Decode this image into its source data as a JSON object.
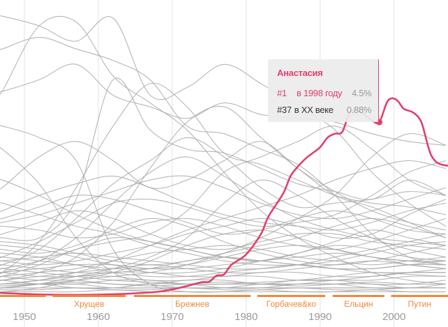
{
  "chart_data": {
    "type": "line",
    "title": "",
    "xlabel": "",
    "ylabel": "",
    "xlim": [
      1946.7,
      2007.3
    ],
    "ylim": [
      0,
      7.67
    ],
    "x_ticks": [
      1950,
      1960,
      1970,
      1980,
      1990,
      2000
    ],
    "grid": "vertical",
    "eras": [
      {
        "label": "",
        "start": 1946.7,
        "end": 1952.9
      },
      {
        "label": "Хрущев",
        "start": 1953.8,
        "end": 1963.7
      },
      {
        "label": "Брежнев",
        "start": 1964.8,
        "end": 1980.6
      },
      {
        "label": "Горбачев&ко",
        "start": 1981.5,
        "end": 1990.7
      },
      {
        "label": "Ельцин",
        "start": 1991.7,
        "end": 1998.7
      },
      {
        "label": "Путин",
        "start": 1999.6,
        "end": 2007.3
      }
    ],
    "highlight": {
      "name": "Анастасия",
      "points": [
        [
          1946.7,
          0.07
        ],
        [
          1952,
          0.03
        ],
        [
          1958,
          0.02
        ],
        [
          1964,
          0.05
        ],
        [
          1968,
          0.1
        ],
        [
          1970,
          0.16
        ],
        [
          1972,
          0.25
        ],
        [
          1974,
          0.35
        ],
        [
          1975,
          0.36
        ],
        [
          1976,
          0.52
        ],
        [
          1977,
          0.55
        ],
        [
          1978,
          0.8
        ],
        [
          1980,
          1.07
        ],
        [
          1982,
          1.6
        ],
        [
          1983,
          2.05
        ],
        [
          1985,
          2.65
        ],
        [
          1986,
          3.1
        ],
        [
          1987,
          3.35
        ],
        [
          1988,
          3.55
        ],
        [
          1989,
          3.7
        ],
        [
          1990,
          3.85
        ],
        [
          1991,
          4.1
        ],
        [
          1992,
          4.2
        ],
        [
          1993,
          4.25
        ],
        [
          1994,
          4.75
        ],
        [
          1995,
          4.8
        ],
        [
          1996,
          4.7
        ],
        [
          1997,
          4.55
        ],
        [
          1998,
          4.5
        ],
        [
          1999,
          5.0
        ],
        [
          1999.7,
          5.12
        ],
        [
          2000.5,
          5.05
        ],
        [
          2001.3,
          4.85
        ],
        [
          2002.4,
          4.77
        ],
        [
          2003.2,
          4.65
        ],
        [
          2003.8,
          4.45
        ],
        [
          2004.5,
          3.95
        ],
        [
          2005,
          3.65
        ],
        [
          2005.7,
          3.47
        ],
        [
          2006.4,
          3.4
        ],
        [
          2007.3,
          3.37
        ]
      ],
      "marker_year": 1998,
      "marker_value": 4.5
    },
    "background_years": [
      1947,
      1952,
      1957,
      1962,
      1967,
      1972,
      1977,
      1982,
      1987,
      1992,
      1997,
      2002,
      2007
    ],
    "background_series": [
      [
        5.3,
        7.0,
        7.1,
        5.7,
        5.0,
        4.3,
        3.2,
        2.2,
        1.5,
        1.0,
        0.6,
        0.4,
        0.3
      ],
      [
        7.25,
        7.0,
        6.6,
        7.2,
        5.2,
        5.4,
        6.0,
        5.5,
        4.9,
        4.3,
        3.2,
        2.4,
        1.8
      ],
      [
        6.4,
        6.7,
        6.4,
        6.1,
        5.6,
        4.4,
        4.2,
        3.8,
        3.4,
        2.6,
        1.6,
        1.0,
        0.8
      ],
      [
        5.3,
        5.6,
        6.0,
        5.2,
        4.9,
        4.6,
        5.0,
        4.7,
        4.6,
        4.5,
        4.2,
        4.0,
        3.9
      ],
      [
        4.4,
        4.1,
        3.5,
        1.2,
        0.3,
        0.1,
        0.1,
        0.1,
        0.1,
        0.1,
        0.1,
        0.1,
        0.1
      ],
      [
        0.6,
        1.4,
        2.8,
        4.4,
        5.5,
        4.9,
        3.7,
        3.4,
        3.0,
        2.6,
        2.4,
        2.3,
        2.1
      ],
      [
        3.8,
        2.9,
        1.5,
        0.6,
        0.3,
        0.2,
        0.2,
        0.2,
        0.2,
        0.2,
        0.2,
        0.2,
        0.2
      ],
      [
        1.5,
        1.5,
        2.5,
        5.6,
        4.3,
        3.8,
        3.7,
        3.3,
        2.9,
        2.7,
        2.5,
        3.0,
        2.6
      ],
      [
        2.8,
        3.6,
        4.0,
        3.5,
        2.8,
        3.0,
        3.5,
        4.0,
        3.3,
        2.6,
        2.3,
        1.9,
        1.5
      ],
      [
        0.8,
        1.2,
        2.0,
        2.9,
        3.5,
        4.1,
        3.6,
        2.8,
        2.3,
        2.4,
        2.5,
        2.7,
        2.6
      ],
      [
        0.4,
        0.6,
        1.0,
        1.9,
        3.3,
        4.5,
        4.9,
        4.1,
        3.3,
        2.7,
        2.2,
        1.9,
        1.7
      ],
      [
        0.5,
        0.8,
        1.2,
        1.4,
        1.6,
        2.2,
        3.2,
        3.6,
        4.0,
        4.4,
        3.8,
        3.0,
        2.6
      ],
      [
        3.0,
        2.6,
        2.1,
        1.7,
        1.4,
        1.2,
        1.0,
        0.9,
        0.8,
        0.7,
        0.7,
        0.8,
        0.8
      ],
      [
        2.4,
        2.1,
        1.8,
        1.6,
        1.3,
        1.1,
        0.9,
        0.8,
        0.8,
        0.9,
        1.1,
        1.3,
        1.4
      ],
      [
        1.0,
        1.4,
        1.9,
        2.4,
        2.5,
        2.3,
        2.0,
        1.8,
        1.9,
        2.1,
        2.6,
        3.2,
        3.5
      ],
      [
        0.3,
        0.4,
        0.6,
        0.9,
        1.3,
        1.7,
        2.0,
        2.3,
        2.6,
        3.0,
        3.3,
        3.5,
        3.3
      ],
      [
        2.0,
        2.3,
        2.6,
        2.5,
        2.2,
        1.9,
        1.6,
        1.7,
        2.0,
        2.2,
        2.0,
        1.7,
        1.6
      ],
      [
        1.8,
        1.7,
        1.5,
        1.6,
        1.9,
        2.0,
        1.8,
        1.5,
        1.3,
        1.2,
        1.4,
        1.7,
        2.0
      ],
      [
        1.2,
        1.1,
        1.3,
        1.7,
        2.0,
        1.8,
        1.4,
        1.1,
        0.9,
        0.8,
        0.9,
        1.1,
        1.3
      ],
      [
        0.2,
        0.3,
        0.5,
        0.7,
        1.0,
        1.5,
        2.4,
        3.0,
        2.6,
        2.0,
        1.5,
        1.2,
        1.0
      ],
      [
        1.6,
        1.9,
        2.2,
        2.0,
        1.6,
        1.3,
        1.2,
        1.4,
        1.6,
        1.6,
        1.4,
        1.3,
        1.2
      ],
      [
        0.9,
        0.8,
        0.9,
        1.1,
        1.3,
        1.6,
        1.8,
        2.0,
        1.8,
        1.5,
        1.6,
        2.1,
        2.5
      ],
      [
        1.4,
        1.3,
        1.1,
        0.9,
        0.8,
        0.9,
        1.1,
        1.3,
        1.5,
        1.8,
        2.0,
        1.8,
        1.5
      ],
      [
        0.7,
        0.9,
        1.2,
        1.5,
        1.4,
        1.2,
        1.0,
        0.9,
        1.1,
        1.4,
        1.7,
        1.5,
        1.3
      ],
      [
        1.1,
        1.0,
        0.8,
        0.7,
        0.7,
        0.8,
        1.0,
        1.2,
        1.3,
        1.2,
        1.0,
        0.9,
        0.9
      ],
      [
        0.5,
        0.6,
        0.7,
        0.9,
        1.1,
        1.2,
        1.3,
        1.2,
        1.0,
        0.9,
        0.8,
        0.9,
        1.0
      ],
      [
        0.9,
        1.0,
        1.1,
        1.0,
        0.9,
        0.8,
        0.7,
        0.7,
        0.8,
        1.0,
        1.2,
        1.4,
        1.6
      ],
      [
        0.6,
        0.7,
        0.8,
        0.8,
        0.7,
        0.7,
        0.8,
        0.9,
        1.0,
        1.1,
        1.0,
        0.8,
        0.7
      ],
      [
        0.8,
        0.7,
        0.6,
        0.6,
        0.7,
        0.9,
        1.0,
        0.9,
        0.8,
        0.7,
        0.7,
        0.8,
        0.9
      ],
      [
        0.4,
        0.5,
        0.6,
        0.7,
        0.8,
        0.7,
        0.6,
        0.6,
        0.7,
        0.8,
        0.9,
        0.8,
        0.7
      ],
      [
        0.6,
        0.5,
        0.5,
        0.6,
        0.6,
        0.5,
        0.5,
        0.6,
        0.6,
        0.5,
        0.5,
        0.6,
        0.7
      ],
      [
        0.3,
        0.4,
        0.5,
        0.5,
        0.4,
        0.4,
        0.5,
        0.5,
        0.4,
        0.4,
        0.5,
        0.6,
        0.6
      ],
      [
        0.5,
        0.4,
        0.4,
        0.3,
        0.3,
        0.4,
        0.4,
        0.3,
        0.3,
        0.4,
        0.4,
        0.5,
        0.5
      ],
      [
        0.2,
        0.3,
        0.3,
        0.4,
        0.4,
        0.3,
        0.3,
        0.3,
        0.4,
        0.4,
        0.3,
        0.3,
        0.4
      ],
      [
        0.3,
        0.3,
        0.2,
        0.2,
        0.3,
        0.3,
        0.2,
        0.2,
        0.3,
        0.3,
        0.3,
        0.2,
        0.3
      ],
      [
        0.2,
        0.2,
        0.2,
        0.2,
        0.2,
        0.2,
        0.2,
        0.2,
        0.2,
        0.2,
        0.2,
        0.2,
        0.2
      ],
      [
        0.15,
        0.15,
        0.2,
        0.15,
        0.15,
        0.2,
        0.15,
        0.15,
        0.2,
        0.15,
        0.15,
        0.2,
        0.2
      ],
      [
        0.1,
        0.1,
        0.1,
        0.15,
        0.1,
        0.1,
        0.1,
        0.15,
        0.1,
        0.1,
        0.15,
        0.1,
        0.1
      ],
      [
        0.4,
        0.3,
        0.3,
        0.2,
        0.2,
        0.2,
        0.2,
        0.3,
        0.3,
        0.3,
        0.2,
        0.2,
        0.2
      ],
      [
        0.25,
        0.3,
        0.35,
        0.3,
        0.25,
        0.3,
        0.35,
        0.3,
        0.25,
        0.3,
        0.35,
        0.3,
        0.3
      ],
      [
        0.7,
        0.6,
        0.5,
        0.4,
        0.35,
        0.3,
        0.3,
        0.35,
        0.4,
        0.5,
        0.6,
        0.55,
        0.5
      ],
      [
        1.0,
        0.9,
        0.8,
        0.6,
        0.5,
        0.5,
        0.6,
        0.7,
        0.8,
        0.7,
        0.6,
        0.6,
        0.6
      ],
      [
        1.3,
        1.2,
        1.0,
        0.8,
        0.6,
        0.6,
        0.7,
        0.9,
        1.1,
        1.3,
        1.2,
        1.0,
        0.9
      ],
      [
        0.1,
        0.2,
        0.4,
        0.6,
        0.9,
        1.3,
        1.6,
        1.7,
        1.5,
        1.2,
        1.0,
        0.9,
        0.8
      ],
      [
        2.2,
        2.6,
        2.9,
        3.1,
        2.8,
        2.4,
        2.1,
        1.9,
        1.8,
        1.7,
        1.9,
        2.2,
        2.4
      ],
      [
        0.6,
        0.9,
        1.5,
        2.4,
        3.2,
        3.6,
        3.1,
        2.5,
        2.0,
        1.7,
        1.5,
        1.4,
        1.3
      ],
      [
        1.9,
        2.1,
        2.4,
        2.7,
        3.0,
        3.1,
        2.8,
        2.4,
        2.1,
        2.0,
        2.2,
        2.5,
        2.8
      ],
      [
        0.2,
        0.3,
        0.4,
        0.5,
        0.6,
        0.8,
        1.1,
        1.5,
        2.0,
        2.6,
        3.6,
        4.2,
        3.9
      ]
    ]
  },
  "tooltip": {
    "name": "Анастасия",
    "row1": {
      "rank": "#1",
      "period": "в 1998 году",
      "value": "4.5%"
    },
    "row2": {
      "rank": "#37",
      "period": "в XX веке",
      "value": "0.88%"
    }
  },
  "colors": {
    "highlight": "#e0406e",
    "era": "#f0893a",
    "background_line": "#a9a9a9",
    "tick_label": "#9a9a9a"
  }
}
